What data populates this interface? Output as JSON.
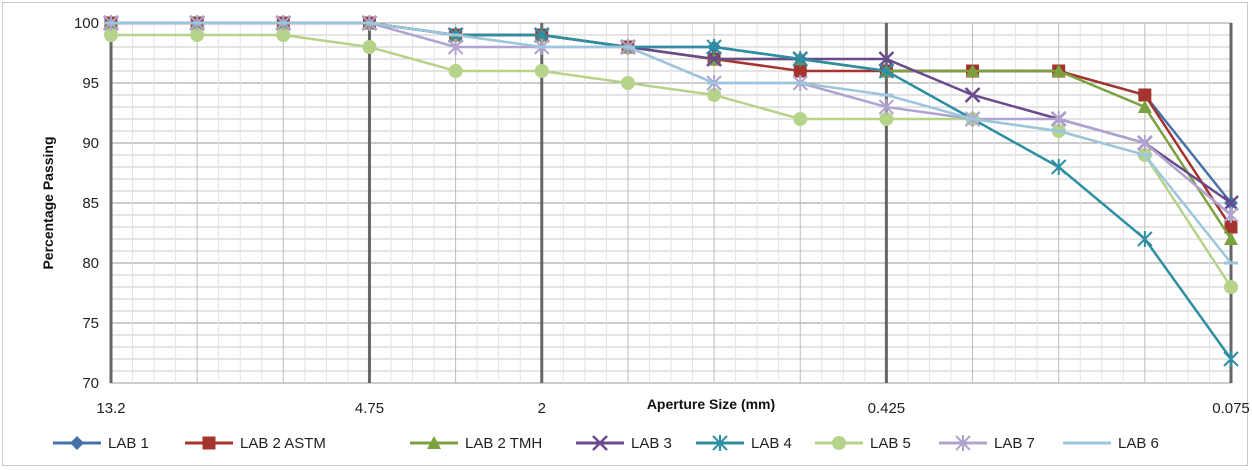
{
  "chart_data": {
    "type": "line",
    "title": "",
    "xlabel": "Aperture Size (mm)",
    "ylabel": "Percentage Passing",
    "ylim": [
      70,
      100
    ],
    "yticks": [
      70,
      75,
      80,
      85,
      90,
      95,
      100
    ],
    "x_tick_labels": [
      "13.2",
      "4.75",
      "2",
      "0.425",
      "0.075"
    ],
    "x_tick_positions": [
      0,
      3,
      5,
      9,
      13
    ],
    "x_count": 14,
    "grid": true,
    "legend_position": "bottom",
    "series": [
      {
        "name": "LAB 1",
        "color": "#4472a8",
        "marker": "diamond",
        "values": [
          100,
          100,
          100,
          100,
          99,
          99,
          98,
          98,
          97,
          96,
          96,
          96,
          94,
          85
        ]
      },
      {
        "name": "LAB 2 ASTM",
        "color": "#a5332e",
        "marker": "square",
        "values": [
          100,
          100,
          100,
          100,
          99,
          99,
          98,
          97,
          96,
          96,
          96,
          96,
          94,
          83
        ]
      },
      {
        "name": "LAB 2 TMH",
        "color": "#7ba23f",
        "marker": "triangle",
        "values": [
          100,
          100,
          100,
          100,
          99,
          99,
          98,
          97,
          97,
          96,
          96,
          96,
          93,
          82
        ]
      },
      {
        "name": "LAB 3",
        "color": "#6a4a8c",
        "marker": "x",
        "values": [
          100,
          100,
          100,
          100,
          99,
          99,
          98,
          97,
          97,
          97,
          94,
          92,
          90,
          85
        ]
      },
      {
        "name": "LAB 4",
        "color": "#2e8fa3",
        "marker": "star",
        "values": [
          100,
          100,
          100,
          100,
          99,
          99,
          98,
          98,
          97,
          96,
          92,
          88,
          82,
          72
        ]
      },
      {
        "name": "LAB 5",
        "color": "#b6d38a",
        "marker": "circle",
        "values": [
          99,
          99,
          99,
          98,
          96,
          96,
          95,
          94,
          92,
          92,
          92,
          91,
          89,
          78
        ]
      },
      {
        "name": "LAB 7",
        "color": "#b1a3cf",
        "marker": "star",
        "values": [
          100,
          100,
          100,
          100,
          98,
          98,
          98,
          95,
          95,
          93,
          92,
          92,
          90,
          84
        ]
      },
      {
        "name": "LAB 6",
        "color": "#9cc6dc",
        "marker": "dash",
        "values": [
          100,
          100,
          100,
          100,
          99,
          98,
          98,
          95,
          95,
          94,
          92,
          91,
          89,
          80
        ]
      }
    ]
  }
}
